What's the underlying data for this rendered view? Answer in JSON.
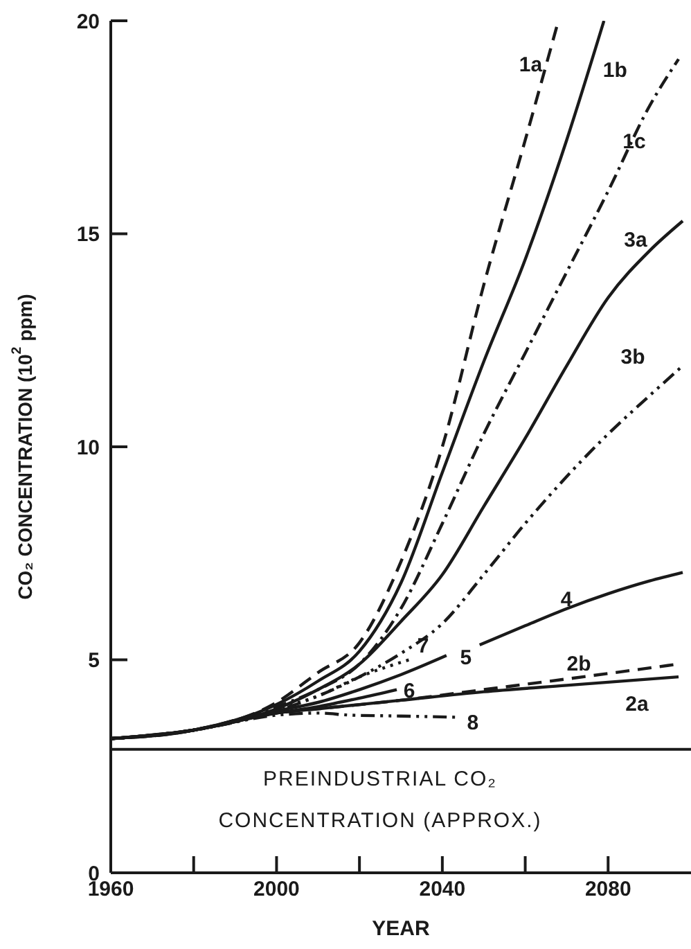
{
  "chart_data": {
    "type": "line",
    "xlabel": "YEAR",
    "ylabel": "CO₂ CONCENTRATION (10$^{2}$ ppm)",
    "xlim": [
      1960,
      2100
    ],
    "xticks": [
      1960,
      {
        "value": 1980,
        "label": null
      },
      2000,
      {
        "value": 2020,
        "label": null
      },
      2040,
      {
        "value": 2060,
        "label": null
      },
      2080
    ],
    "ylim": [
      0,
      20
    ],
    "yticks": [
      0,
      5,
      10,
      15,
      20
    ],
    "grid": false,
    "legend": false,
    "marker": "none",
    "ref_lines": [
      {
        "axis": "y",
        "value": 2.9,
        "label": "PREINDUSTRIAL CO₂\nCONCENTRATION (APPROX.)",
        "color": "#1a1a1a",
        "line_style": "solid"
      }
    ],
    "series": [
      {
        "name": "1a",
        "color": "#1a1a1a",
        "line_style": "dashed",
        "x": [
          1960,
          1980,
          2000,
          2010,
          2020,
          2030,
          2040,
          2050,
          2060,
          2068
        ],
        "values": [
          3.15,
          3.35,
          4.0,
          4.7,
          5.4,
          7.3,
          10.0,
          13.8,
          17.2,
          20
        ]
      },
      {
        "name": "1b",
        "color": "#1a1a1a",
        "line_style": "solid",
        "x": [
          1960,
          1980,
          2000,
          2010,
          2020,
          2030,
          2040,
          2050,
          2060,
          2070,
          2079
        ],
        "values": [
          3.15,
          3.35,
          3.95,
          4.5,
          5.2,
          6.8,
          9.4,
          12.0,
          14.4,
          17.2,
          20
        ]
      },
      {
        "name": "1c",
        "color": "#1a1a1a",
        "line_style": "dashdot",
        "x": [
          1960,
          1980,
          2000,
          2010,
          2020,
          2030,
          2040,
          2050,
          2060,
          2070,
          2080,
          2090,
          2097
        ],
        "values": [
          3.15,
          3.35,
          3.9,
          4.3,
          4.9,
          6.2,
          8.2,
          10.3,
          12.2,
          14.1,
          16.0,
          18.0,
          19.1
        ]
      },
      {
        "name": "3a",
        "color": "#1a1a1a",
        "line_style": "solid",
        "x": [
          1960,
          1980,
          2000,
          2010,
          2020,
          2030,
          2040,
          2050,
          2060,
          2070,
          2080,
          2090,
          2098
        ],
        "values": [
          3.15,
          3.35,
          3.85,
          4.3,
          4.9,
          5.9,
          7.0,
          8.6,
          10.2,
          11.9,
          13.5,
          14.6,
          15.3
        ]
      },
      {
        "name": "3b",
        "color": "#1a1a1a",
        "line_style": "dashdotdot",
        "x": [
          1960,
          1980,
          2000,
          2010,
          2020,
          2030,
          2040,
          2050,
          2060,
          2070,
          2080,
          2090,
          2098
        ],
        "values": [
          3.15,
          3.35,
          3.8,
          4.15,
          4.6,
          5.15,
          5.85,
          7.0,
          8.2,
          9.3,
          10.3,
          11.2,
          11.9
        ]
      },
      {
        "name": "4",
        "color": "#1a1a1a",
        "line_style": "solid",
        "x": [
          2049,
          2060,
          2070,
          2080,
          2090,
          2098
        ],
        "values": [
          5.35,
          5.8,
          6.2,
          6.55,
          6.85,
          7.05
        ]
      },
      {
        "name": "5",
        "color": "#1a1a1a",
        "line_style": "solid",
        "x": [
          1960,
          1980,
          2000,
          2010,
          2020,
          2030,
          2041
        ],
        "values": [
          3.15,
          3.35,
          3.8,
          4.0,
          4.3,
          4.65,
          5.1
        ]
      },
      {
        "name": "7",
        "color": "#1a1a1a",
        "line_style": "dotted",
        "x": [
          1960,
          1980,
          2000,
          2010,
          2020,
          2032
        ],
        "values": [
          3.15,
          3.35,
          3.85,
          4.15,
          4.6,
          5.0
        ]
      },
      {
        "name": "6",
        "color": "#1a1a1a",
        "line_style": "solid",
        "x": [
          1960,
          1980,
          2000,
          2010,
          2020,
          2029
        ],
        "values": [
          3.15,
          3.35,
          3.75,
          3.9,
          4.1,
          4.3
        ]
      },
      {
        "name": "2b",
        "color": "#1a1a1a",
        "line_style": "dashed",
        "x": [
          1960,
          1980,
          2000,
          2010,
          2030,
          2050,
          2070,
          2097
        ],
        "values": [
          3.15,
          3.35,
          3.75,
          3.85,
          4.05,
          4.3,
          4.55,
          4.9
        ]
      },
      {
        "name": "2a",
        "color": "#1a1a1a",
        "line_style": "solid",
        "x": [
          1960,
          1980,
          2000,
          2010,
          2030,
          2050,
          2070,
          2097
        ],
        "values": [
          3.15,
          3.35,
          3.75,
          3.85,
          4.05,
          4.25,
          4.4,
          4.6
        ]
      },
      {
        "name": "8",
        "color": "#1a1a1a",
        "line_style": "dashdotdot",
        "x": [
          1960,
          1980,
          2000,
          2010,
          2018,
          2030,
          2044
        ],
        "values": [
          3.15,
          3.35,
          3.7,
          3.75,
          3.7,
          3.68,
          3.65
        ]
      }
    ]
  }
}
